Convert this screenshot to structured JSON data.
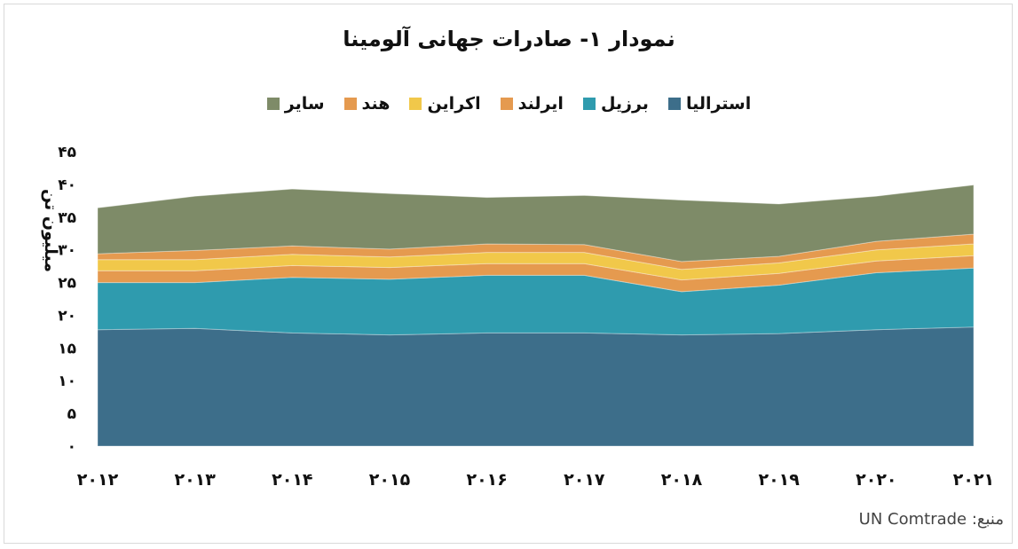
{
  "chart_data": {
    "type": "area",
    "stacked": true,
    "title": "نمودار ۱- صادرات جهانی آلومینا",
    "ylabel": "میلیون تن",
    "xlabel": "",
    "ylim": [
      0,
      45
    ],
    "yticks": [
      0,
      5,
      10,
      15,
      20,
      25,
      30,
      35,
      40,
      45
    ],
    "ytick_labels": [
      "۰",
      "۵",
      "۱۰",
      "۱۵",
      "۲۰",
      "۲۵",
      "۳۰",
      "۳۵",
      "۴۰",
      "۴۵"
    ],
    "x": [
      2012,
      2013,
      2014,
      2015,
      2016,
      2017,
      2018,
      2019,
      2020,
      2021
    ],
    "x_labels": [
      "۲۰۱۲",
      "۲۰۱۳",
      "۲۰۱۴",
      "۲۰۱۵",
      "۲۰۱۶",
      "۲۰۱۷",
      "۲۰۱۸",
      "۲۰۱۹",
      "۲۰۲۰",
      "۲۰۲۱"
    ],
    "legend_position": "top",
    "grid": false,
    "series": [
      {
        "name": "استرالیا",
        "color": "#3d6e8a",
        "values": [
          17.8,
          18.0,
          17.3,
          17.0,
          17.3,
          17.3,
          17.0,
          17.2,
          17.8,
          18.2
        ]
      },
      {
        "name": "برزیل",
        "color": "#2f9bae",
        "values": [
          7.2,
          7.0,
          8.5,
          8.5,
          8.8,
          8.8,
          6.6,
          7.4,
          8.7,
          9.0
        ]
      },
      {
        "name": "ایرلند",
        "color": "#e59a4f",
        "values": [
          1.8,
          1.8,
          1.8,
          1.8,
          1.8,
          1.8,
          1.8,
          1.8,
          1.8,
          1.9
        ]
      },
      {
        "name": "اکراین",
        "color": "#f1c84a",
        "values": [
          1.7,
          1.7,
          1.7,
          1.6,
          1.7,
          1.7,
          1.6,
          1.6,
          1.7,
          1.8
        ]
      },
      {
        "name": "هند",
        "color": "#e59a4f",
        "values": [
          0.9,
          1.4,
          1.3,
          1.2,
          1.3,
          1.2,
          1.2,
          1.0,
          1.3,
          1.5
        ]
      },
      {
        "name": "سایر",
        "color": "#7e8b68",
        "values": [
          7.0,
          8.3,
          8.7,
          8.5,
          7.1,
          7.5,
          9.4,
          8.0,
          6.9,
          7.5
        ]
      }
    ]
  },
  "source_text": "منبع: UN Comtrade"
}
